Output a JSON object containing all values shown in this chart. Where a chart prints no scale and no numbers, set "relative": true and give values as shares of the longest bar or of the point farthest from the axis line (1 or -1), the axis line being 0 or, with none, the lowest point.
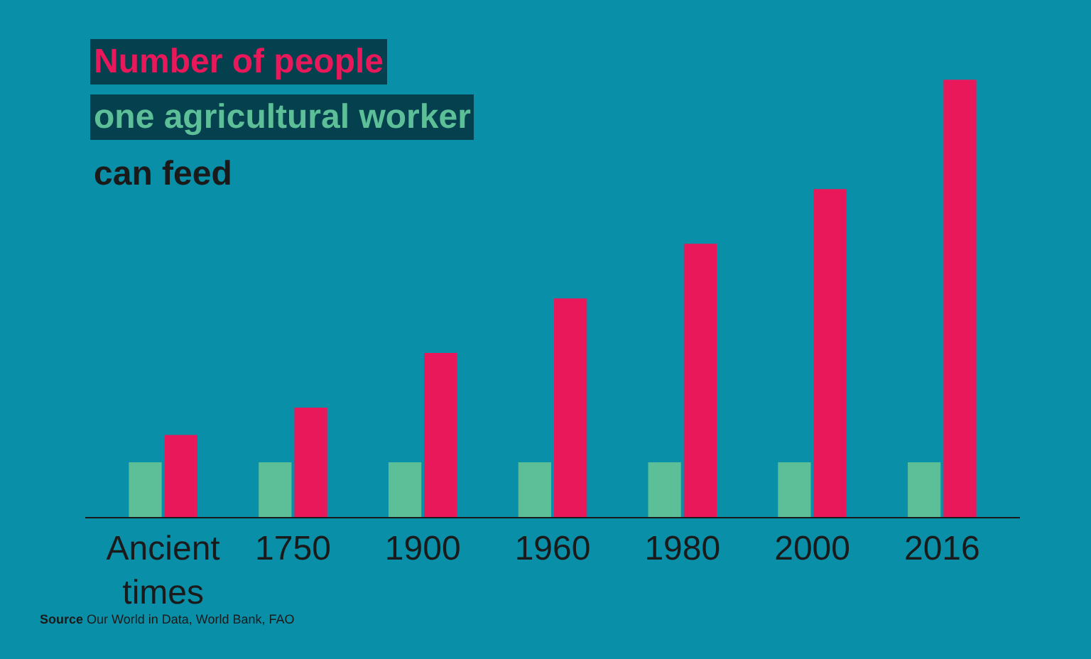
{
  "chart_data": {
    "type": "bar",
    "title": "can feed",
    "relative": true,
    "legend": false,
    "grid": false,
    "categories": [
      "Ancient times",
      "1750",
      "1900",
      "1960",
      "1980",
      "2000",
      "2016"
    ],
    "series": [
      {
        "name": "one agricultural worker",
        "color": "#5dbf98",
        "values": [
          0.125,
          0.125,
          0.125,
          0.125,
          0.125,
          0.125,
          0.125
        ]
      },
      {
        "name": "Number of people",
        "color": "#e8185a",
        "values": [
          0.1875,
          0.25,
          0.375,
          0.5,
          0.625,
          0.75,
          1
        ]
      }
    ],
    "annotations": [
      "Source Our World in Data, World Bank, FAO"
    ]
  }
}
